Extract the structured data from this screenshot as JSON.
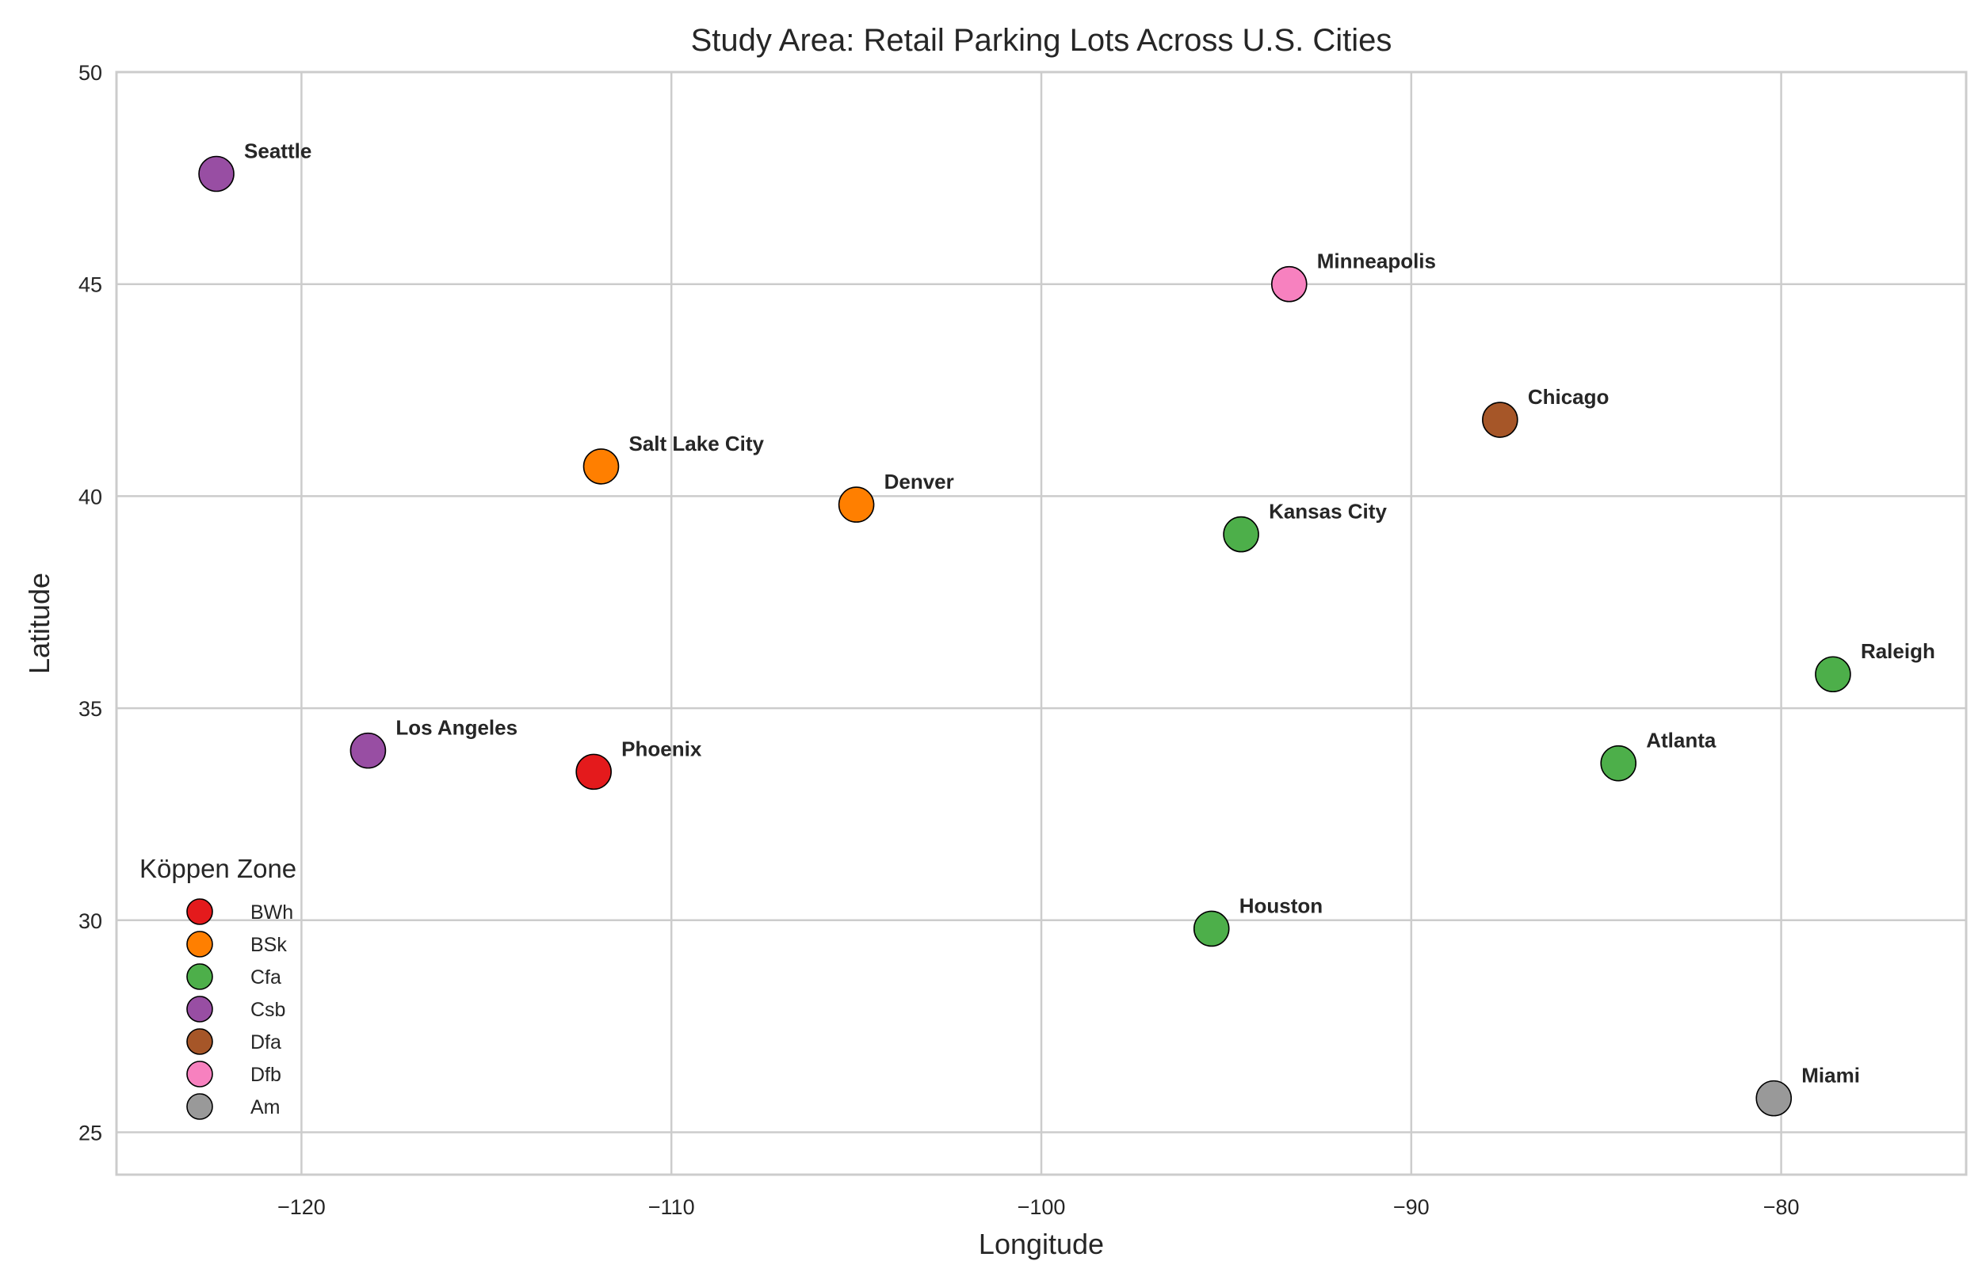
{
  "chart_data": {
    "type": "scatter",
    "title": "Study Area: Retail Parking Lots Across U.S. Cities",
    "xlabel": "Longitude",
    "ylabel": "Latitude",
    "xlim": [
      -125,
      -75
    ],
    "ylim": [
      24,
      50
    ],
    "xticks": [
      -120,
      -110,
      -100,
      -90,
      -80
    ],
    "xtick_labels": [
      "−120",
      "−110",
      "−100",
      "−90",
      "−80"
    ],
    "yticks": [
      25,
      30,
      35,
      40,
      45,
      50
    ],
    "ytick_labels": [
      "25",
      "30",
      "35",
      "40",
      "45",
      "50"
    ],
    "grid": true,
    "legend": {
      "title": "Köppen Zone",
      "placement": "lower-left",
      "entries": [
        {
          "label": "BWh",
          "color": "#e41a1c"
        },
        {
          "label": "BSk",
          "color": "#ff7f00"
        },
        {
          "label": "Cfa",
          "color": "#4daf4a"
        },
        {
          "label": "Csb",
          "color": "#984ea3"
        },
        {
          "label": "Dfa",
          "color": "#a65628"
        },
        {
          "label": "Dfb",
          "color": "#f781bf"
        },
        {
          "label": "Am",
          "color": "#999999"
        }
      ]
    },
    "points": [
      {
        "city": "Seattle",
        "lon": -122.3,
        "lat": 47.6,
        "zone": "Csb"
      },
      {
        "city": "Minneapolis",
        "lon": -93.3,
        "lat": 45.0,
        "zone": "Dfb"
      },
      {
        "city": "Chicago",
        "lon": -87.6,
        "lat": 41.8,
        "zone": "Dfa"
      },
      {
        "city": "Salt Lake City",
        "lon": -111.9,
        "lat": 40.7,
        "zone": "BSk"
      },
      {
        "city": "Denver",
        "lon": -105.0,
        "lat": 39.8,
        "zone": "BSk"
      },
      {
        "city": "Kansas City",
        "lon": -94.6,
        "lat": 39.1,
        "zone": "Cfa"
      },
      {
        "city": "Raleigh",
        "lon": -78.6,
        "lat": 35.8,
        "zone": "Cfa"
      },
      {
        "city": "Los Angeles",
        "lon": -118.2,
        "lat": 34.0,
        "zone": "Csb"
      },
      {
        "city": "Phoenix",
        "lon": -112.1,
        "lat": 33.5,
        "zone": "BWh"
      },
      {
        "city": "Atlanta",
        "lon": -84.4,
        "lat": 33.7,
        "zone": "Cfa"
      },
      {
        "city": "Houston",
        "lon": -95.4,
        "lat": 29.8,
        "zone": "Cfa"
      },
      {
        "city": "Miami",
        "lon": -80.2,
        "lat": 25.8,
        "zone": "Am"
      }
    ]
  }
}
